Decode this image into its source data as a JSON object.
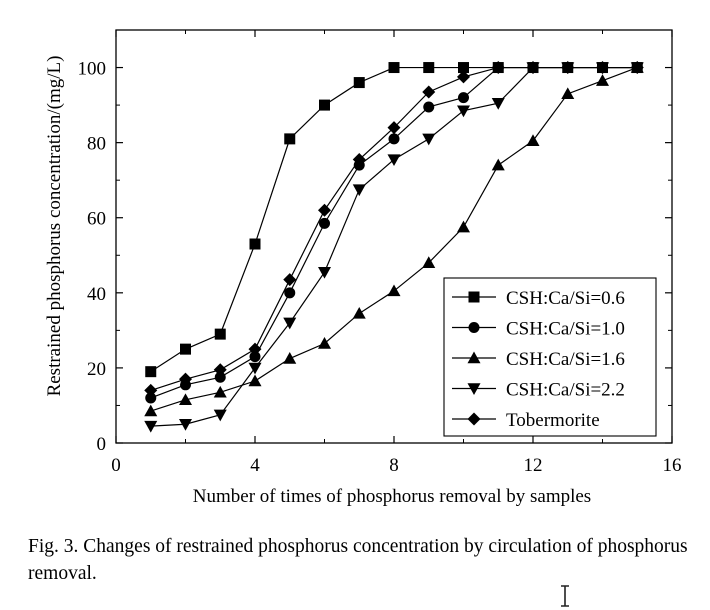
{
  "chart_data": {
    "type": "line",
    "xlabel": "Number of times of phosphorus removal by samples",
    "ylabel": "Restrained phosphorus concentration/(mg/L)",
    "xlim": [
      0,
      16
    ],
    "ylim": [
      0,
      110
    ],
    "xticks": [
      0,
      4,
      8,
      12,
      16
    ],
    "yticks": [
      0,
      20,
      40,
      60,
      80,
      100
    ],
    "grid": false,
    "legend_position": "bottom-right",
    "series": [
      {
        "name": "CSH:Ca/Si=0.6",
        "marker": "square",
        "x": [
          1,
          2,
          3,
          4,
          5,
          6,
          7,
          8,
          9,
          10,
          11,
          12,
          13,
          14,
          15
        ],
        "y": [
          19,
          25,
          29,
          53,
          81,
          90,
          96,
          100,
          100,
          100,
          100,
          100,
          100,
          100,
          100
        ]
      },
      {
        "name": "CSH:Ca/Si=1.0",
        "marker": "circle",
        "x": [
          1,
          2,
          3,
          4,
          5,
          6,
          7,
          8,
          9,
          10,
          11,
          12,
          13,
          14,
          15
        ],
        "y": [
          12,
          15.5,
          17.5,
          23,
          40,
          58.5,
          74,
          81,
          89.5,
          92,
          100,
          100,
          100,
          100,
          100
        ]
      },
      {
        "name": "CSH:Ca/Si=1.6",
        "marker": "triangle-up",
        "x": [
          1,
          2,
          3,
          4,
          5,
          6,
          7,
          8,
          9,
          10,
          11,
          12,
          13,
          14,
          15
        ],
        "y": [
          8.5,
          11.5,
          13.5,
          16.5,
          22.5,
          26.5,
          34.5,
          40.5,
          48,
          57.5,
          74,
          80.5,
          93,
          96.5,
          100
        ]
      },
      {
        "name": "CSH:Ca/Si=2.2",
        "marker": "triangle-down",
        "x": [
          1,
          2,
          3,
          4,
          5,
          6,
          7,
          8,
          9,
          10,
          11,
          12,
          13,
          14,
          15
        ],
        "y": [
          4.5,
          5,
          7.5,
          20,
          32,
          45.5,
          67.5,
          75.5,
          81,
          88.5,
          90.5,
          100,
          100,
          100,
          100
        ]
      },
      {
        "name": "Tobermorite",
        "marker": "diamond",
        "x": [
          1,
          2,
          3,
          4,
          5,
          6,
          7,
          8,
          9,
          10,
          11,
          12,
          13,
          14,
          15
        ],
        "y": [
          14,
          17,
          19.5,
          25,
          43.5,
          62,
          75.5,
          84,
          93.5,
          97.5,
          100,
          100,
          100,
          100,
          100
        ]
      }
    ]
  },
  "caption": {
    "text": "Fig. 3.  Changes of restrained phosphorus concentration by circulation of phosphorus removal."
  }
}
